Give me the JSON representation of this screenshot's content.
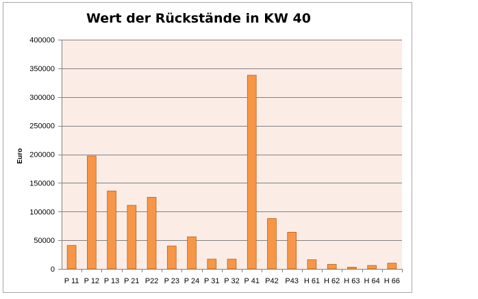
{
  "chart_data": {
    "type": "bar",
    "title": "Wert der Rückstände in KW 40",
    "xlabel": "",
    "ylabel": "Euro",
    "ylim": [
      0,
      400000
    ],
    "yticks": [
      0,
      50000,
      100000,
      150000,
      200000,
      250000,
      300000,
      350000,
      400000
    ],
    "ytick_labels": [
      "0",
      "50000",
      "100000",
      "150000",
      "200000",
      "250000",
      "300000",
      "350000",
      "400000"
    ],
    "categories": [
      "P 11",
      "P 12",
      "P 13",
      "P 21",
      "P22",
      "P 23",
      "P 24",
      "P 31",
      "P 32",
      "P 41",
      "P42",
      "P43",
      "H 61",
      "H 62",
      "H 63",
      "H 64",
      "H 66"
    ],
    "values": [
      41000,
      197000,
      136000,
      111000,
      125000,
      40000,
      56000,
      17000,
      17000,
      338000,
      88000,
      64000,
      16000,
      8000,
      3000,
      6000,
      10000
    ],
    "grid": true,
    "legend": "none",
    "colors": {
      "bar_fill": "#F79646",
      "bar_stroke": "#B6631F",
      "plot_background": "#FCECE6",
      "gridline": "#808080",
      "frame": "#A6A6A6"
    }
  }
}
